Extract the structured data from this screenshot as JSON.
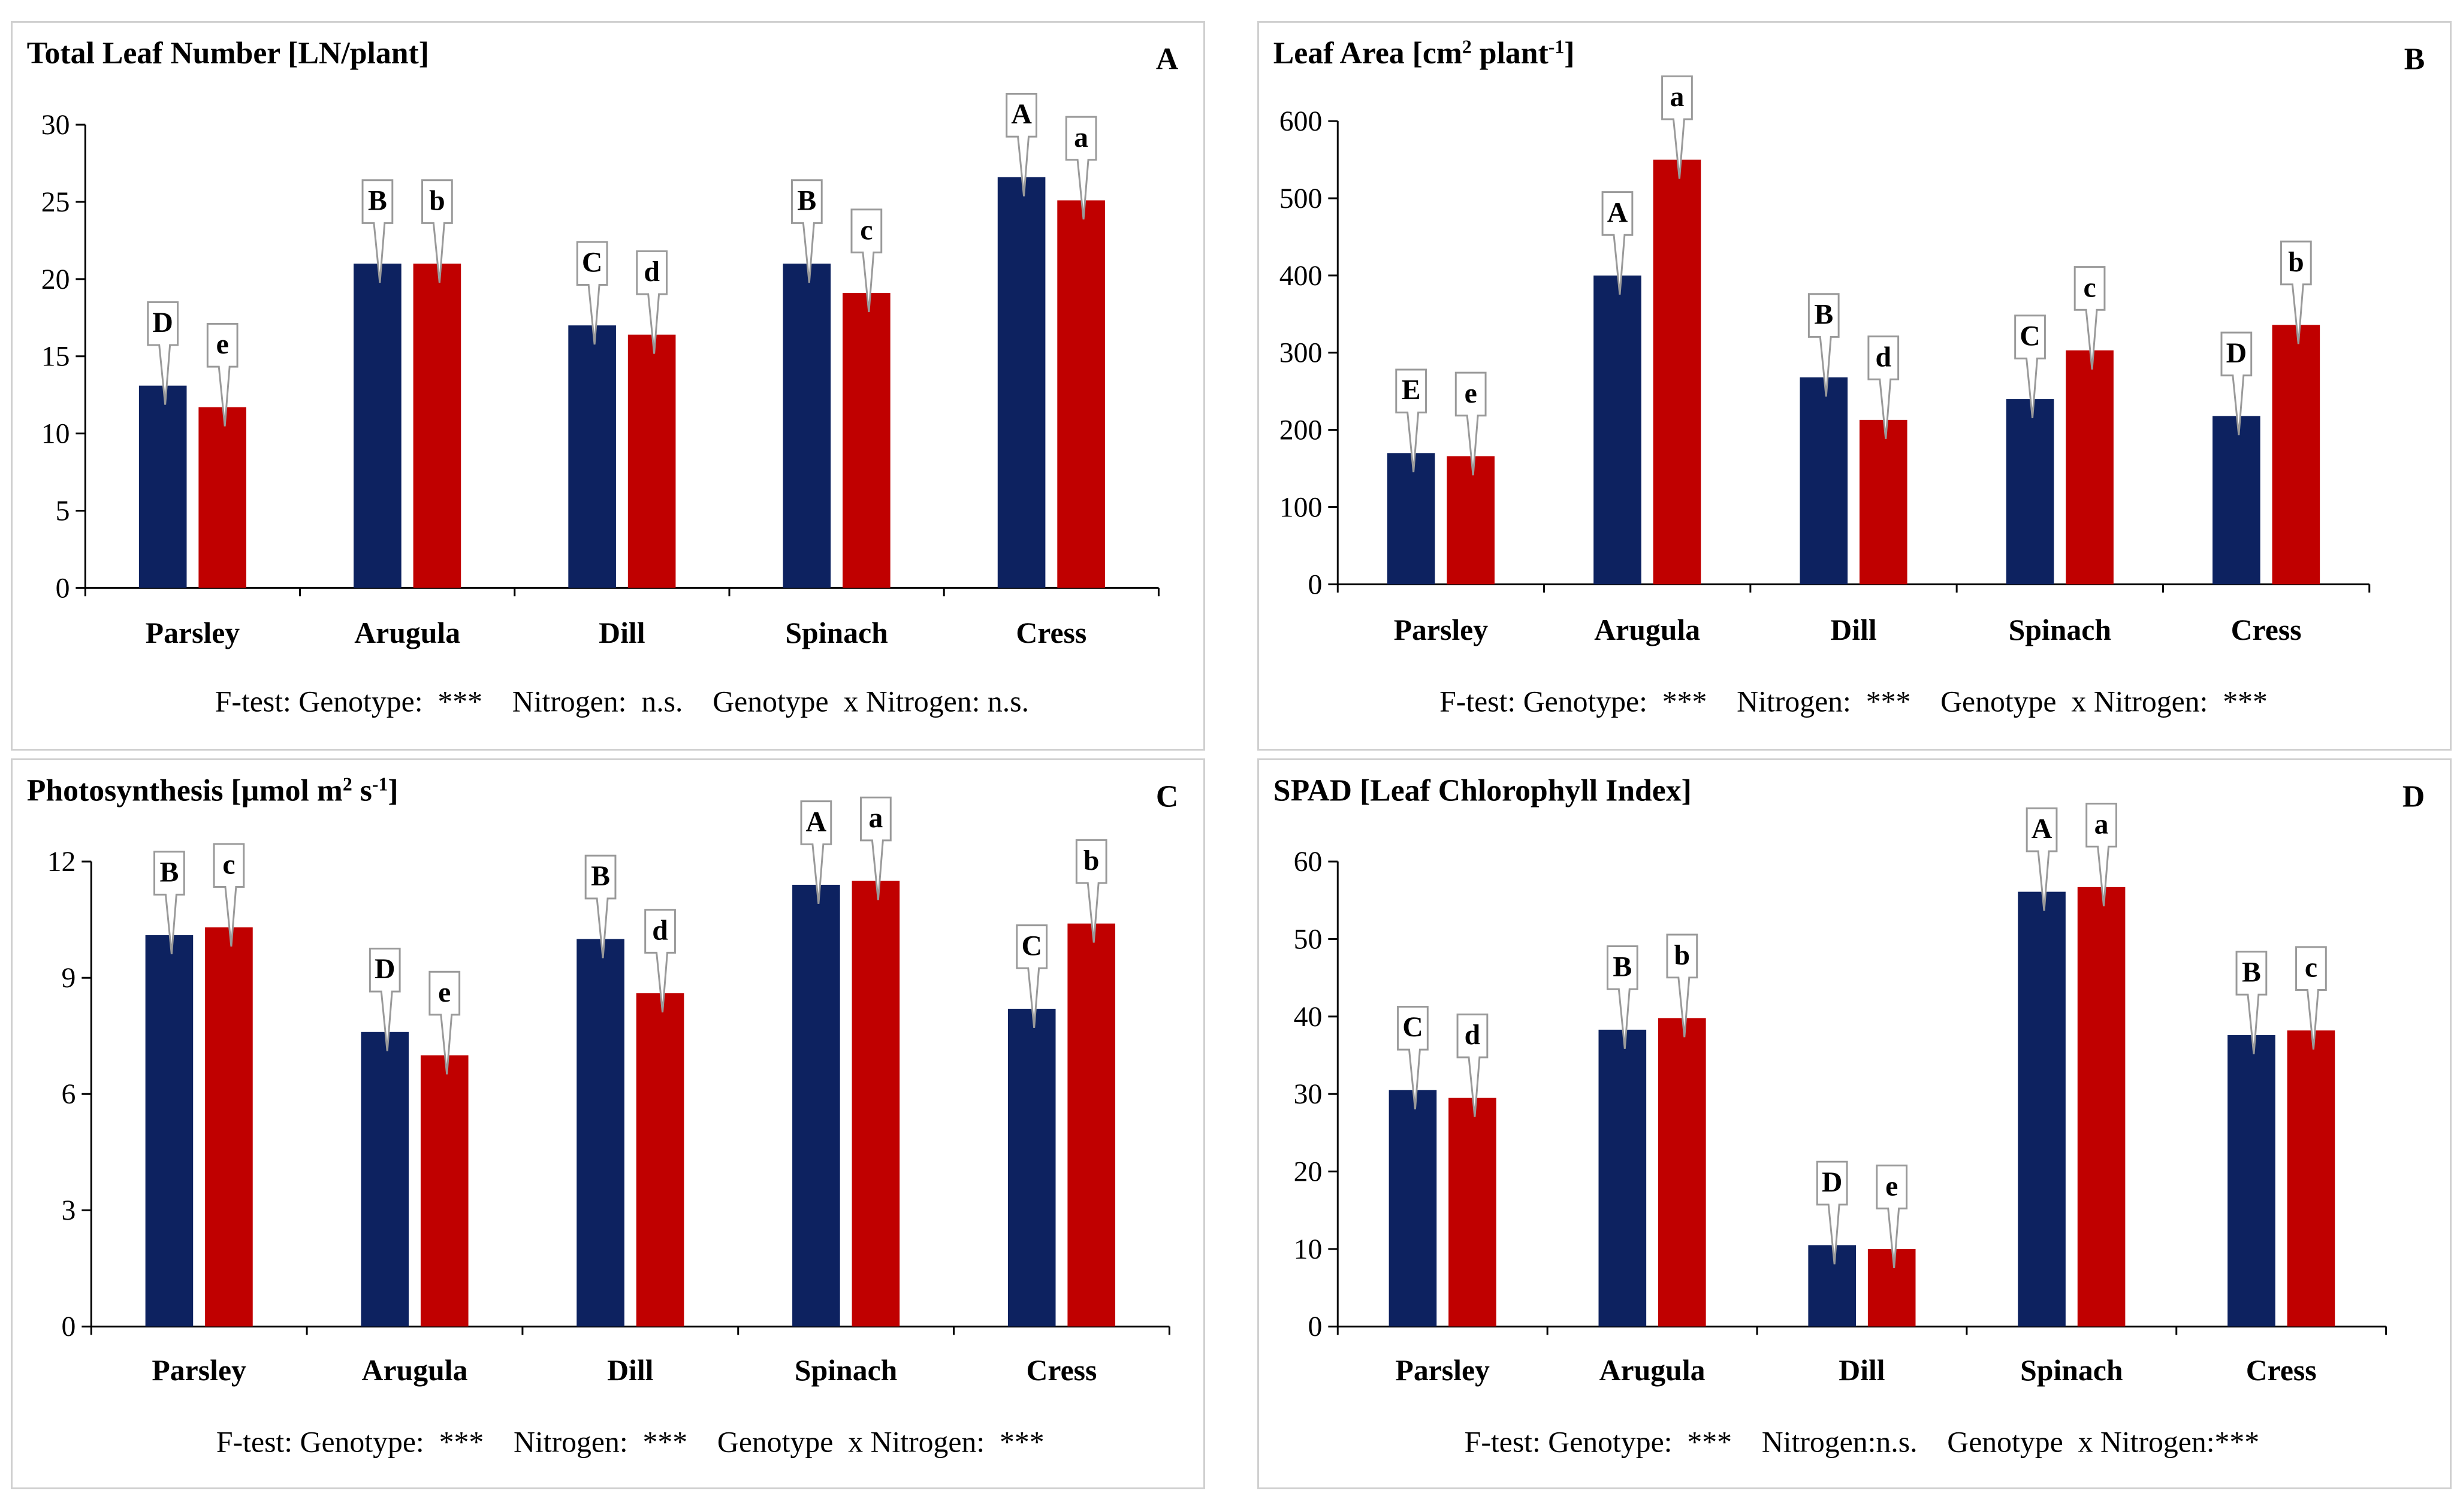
{
  "colors": {
    "genotype_bar": "#0d2260",
    "nitrogen_bar": "#c00000",
    "axis": "#000000",
    "callout_border": "#9a9a9a"
  },
  "chart_data": [
    {
      "type": "bar",
      "panel_label": "A",
      "title": "Total Leaf Number [LN/plant]",
      "title_parts": [
        [
          "Total Leaf Number [LN/plant]",
          ""
        ]
      ],
      "categories": [
        "Parsley",
        "Arugula",
        "Dill",
        "Spinach",
        "Cress"
      ],
      "ylim": [
        0,
        30
      ],
      "yticks": [
        0,
        5,
        10,
        15,
        20,
        25,
        30
      ],
      "series": [
        {
          "name": "Genotype",
          "values": [
            13.1,
            21.0,
            17.0,
            21.0,
            26.6
          ],
          "letters": [
            "D",
            "B",
            "C",
            "B",
            "A"
          ]
        },
        {
          "name": "Nitrogen",
          "values": [
            11.7,
            21.0,
            16.4,
            19.1,
            25.1
          ],
          "letters": [
            "e",
            "b",
            "d",
            "c",
            "a"
          ]
        }
      ],
      "ftest": "F-test: Genotype:  ***    Nitrogen:  n.s.    Genotype  x Nitrogen: n.s."
    },
    {
      "type": "bar",
      "panel_label": "B",
      "title": "Leaf Area [cm2 plant-1]",
      "title_parts": [
        [
          "Leaf Area [cm",
          ""
        ],
        [
          "2",
          "sup"
        ],
        [
          " plant",
          ""
        ],
        [
          "-1",
          "sup"
        ],
        [
          "]",
          ""
        ]
      ],
      "categories": [
        "Parsley",
        "Arugula",
        "Dill",
        "Spinach",
        "Cress"
      ],
      "ylim": [
        0,
        600
      ],
      "yticks": [
        0,
        100,
        200,
        300,
        400,
        500,
        600
      ],
      "series": [
        {
          "name": "Genotype",
          "values": [
            170,
            400,
            268,
            240,
            218
          ],
          "letters": [
            "E",
            "A",
            "B",
            "C",
            "D"
          ]
        },
        {
          "name": "Nitrogen",
          "values": [
            166,
            550,
            213,
            303,
            336
          ],
          "letters": [
            "e",
            "a",
            "d",
            "c",
            "b"
          ]
        }
      ],
      "ftest": "F-test: Genotype:  ***    Nitrogen:  ***    Genotype  x Nitrogen:  ***"
    },
    {
      "type": "bar",
      "panel_label": "C",
      "title": "Photosynthesis [µmol m2 s-1]",
      "title_parts": [
        [
          "Photosynthesis [µmol m",
          ""
        ],
        [
          "2",
          "sup"
        ],
        [
          " s",
          ""
        ],
        [
          "-1",
          "sup"
        ],
        [
          "]",
          ""
        ]
      ],
      "categories": [
        "Parsley",
        "Arugula",
        "Dill",
        "Spinach",
        "Cress"
      ],
      "ylim": [
        0,
        12
      ],
      "yticks": [
        0,
        3,
        6,
        9,
        12
      ],
      "series": [
        {
          "name": "Genotype",
          "values": [
            10.1,
            7.6,
            10.0,
            11.4,
            8.2
          ],
          "letters": [
            "B",
            "D",
            "B",
            "A",
            "C"
          ]
        },
        {
          "name": "Nitrogen",
          "values": [
            10.3,
            7.0,
            8.6,
            11.5,
            10.4
          ],
          "letters": [
            "c",
            "e",
            "d",
            "a",
            "b"
          ]
        }
      ],
      "ftest": "F-test: Genotype:  ***    Nitrogen:  ***    Genotype  x Nitrogen:  ***"
    },
    {
      "type": "bar",
      "panel_label": "D",
      "title": "SPAD [Leaf Chlorophyll  Index]",
      "title_parts": [
        [
          "SPAD [Leaf Chlorophyll  Index]",
          ""
        ]
      ],
      "categories": [
        "Parsley",
        "Arugula",
        "Dill",
        "Spinach",
        "Cress"
      ],
      "ylim": [
        0,
        60
      ],
      "yticks": [
        0,
        10,
        20,
        30,
        40,
        50,
        60
      ],
      "series": [
        {
          "name": "Genotype",
          "values": [
            30.5,
            38.3,
            10.5,
            56.1,
            37.6
          ],
          "letters": [
            "C",
            "B",
            "D",
            "A",
            "B"
          ]
        },
        {
          "name": "Nitrogen",
          "values": [
            29.5,
            39.8,
            10.0,
            56.7,
            38.2
          ],
          "letters": [
            "d",
            "b",
            "e",
            "a",
            "c"
          ]
        }
      ],
      "ftest": "F-test: Genotype:  ***    Nitrogen:n.s.    Genotype  x Nitrogen:***"
    }
  ]
}
